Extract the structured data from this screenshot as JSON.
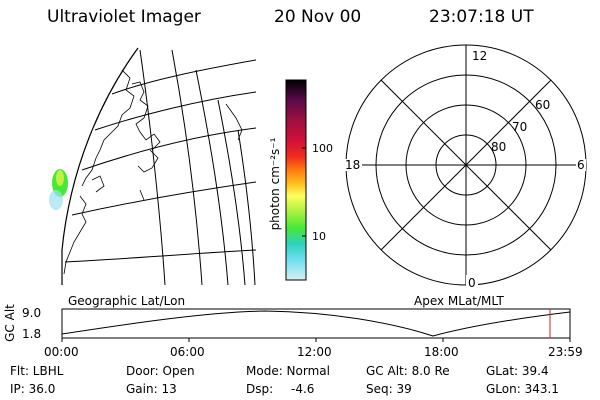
{
  "header": {
    "instrument": "Ultraviolet Imager",
    "date": "20 Nov 00",
    "time": "23:07:18 UT"
  },
  "colorbar": {
    "unit_label": "photon cm⁻²s⁻¹",
    "ticks": [
      "100",
      "10"
    ],
    "colors": [
      "#000000",
      "#5a0a4a",
      "#9c1040",
      "#d0103a",
      "#ee2a20",
      "#ff7a10",
      "#ffc020",
      "#ffff60",
      "#a8f040",
      "#48e838",
      "#30d0c0",
      "#70e0f0",
      "#d8eef2"
    ]
  },
  "polar_plot": {
    "mlt_labels": {
      "top": "12",
      "left": "18",
      "right": "6",
      "bottom": "0"
    },
    "lat_labels": [
      "60",
      "70",
      "80"
    ]
  },
  "panel_labels": {
    "left": "Geographic Lat/Lon",
    "right": "Apex MLat/MLT"
  },
  "altitude_plot": {
    "ylabel": "GC Alt",
    "y_ticks": [
      "9.0",
      "1.8"
    ],
    "x_ticks": [
      "00:00",
      "06:00",
      "12:00",
      "18:00",
      "23:59"
    ]
  },
  "info": {
    "filter": "Flt: LBHL",
    "ip": "IP: 36.0",
    "door": "Door: Open",
    "gain": "Gain: 13",
    "mode": "Mode: Normal",
    "dsp_label": "Dsp:",
    "dsp_value": "-4.6",
    "gc_alt": "GC Alt: 8.0 Re",
    "seq": "Seq: 39",
    "glat": "GLat:  39.4",
    "glon": "GLon: 343.1"
  }
}
